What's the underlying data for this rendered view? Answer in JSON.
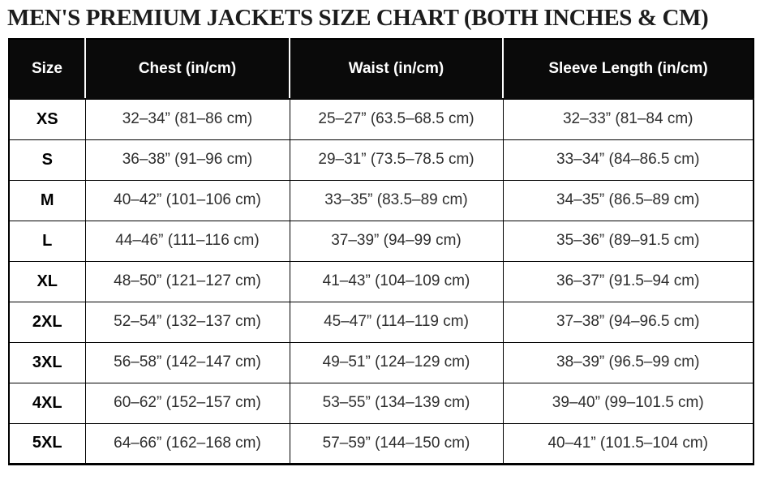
{
  "page": {
    "title": "MEN'S PREMIUM JACKETS SIZE CHART (BOTH INCHES & CM)"
  },
  "colors": {
    "header_bg": "#0a0a0a",
    "header_text": "#ffffff",
    "body_text": "#2e2e2e",
    "border": "#000000",
    "background": "#ffffff"
  },
  "table": {
    "columns": [
      "Size",
      "Chest (in/cm)",
      "Waist (in/cm)",
      "Sleeve Length (in/cm)"
    ],
    "rows": [
      {
        "size": "XS",
        "chest": "32–34” (81–86 cm)",
        "waist": "25–27” (63.5–68.5 cm)",
        "sleeve": "32–33” (81–84 cm)"
      },
      {
        "size": "S",
        "chest": "36–38” (91–96 cm)",
        "waist": "29–31” (73.5–78.5 cm)",
        "sleeve": "33–34” (84–86.5 cm)"
      },
      {
        "size": "M",
        "chest": "40–42” (101–106 cm)",
        "waist": "33–35” (83.5–89 cm)",
        "sleeve": "34–35” (86.5–89 cm)"
      },
      {
        "size": "L",
        "chest": "44–46” (111–116 cm)",
        "waist": "37–39” (94–99 cm)",
        "sleeve": "35–36” (89–91.5 cm)"
      },
      {
        "size": "XL",
        "chest": "48–50” (121–127 cm)",
        "waist": "41–43” (104–109 cm)",
        "sleeve": "36–37” (91.5–94 cm)"
      },
      {
        "size": "2XL",
        "chest": "52–54” (132–137 cm)",
        "waist": "45–47” (114–119 cm)",
        "sleeve": "37–38” (94–96.5 cm)"
      },
      {
        "size": "3XL",
        "chest": "56–58” (142–147 cm)",
        "waist": "49–51” (124–129 cm)",
        "sleeve": "38–39” (96.5–99 cm)"
      },
      {
        "size": "4XL",
        "chest": "60–62” (152–157 cm)",
        "waist": "53–55” (134–139 cm)",
        "sleeve": "39–40” (99–101.5 cm)"
      },
      {
        "size": "5XL",
        "chest": "64–66” (162–168 cm)",
        "waist": "57–59” (144–150 cm)",
        "sleeve": "40–41” (101.5–104 cm)"
      }
    ]
  },
  "chart_data": {
    "type": "table",
    "title": "MEN'S PREMIUM JACKETS SIZE CHART (BOTH INCHES & CM)",
    "columns": [
      "Size",
      "Chest (in/cm)",
      "Waist (in/cm)",
      "Sleeve Length (in/cm)"
    ],
    "rows": [
      [
        "XS",
        "32–34” (81–86 cm)",
        "25–27” (63.5–68.5 cm)",
        "32–33” (81–84 cm)"
      ],
      [
        "S",
        "36–38” (91–96 cm)",
        "29–31” (73.5–78.5 cm)",
        "33–34” (84–86.5 cm)"
      ],
      [
        "M",
        "40–42” (101–106 cm)",
        "33–35” (83.5–89 cm)",
        "34–35” (86.5–89 cm)"
      ],
      [
        "L",
        "44–46” (111–116 cm)",
        "37–39” (94–99 cm)",
        "35–36” (89–91.5 cm)"
      ],
      [
        "XL",
        "48–50” (121–127 cm)",
        "41–43” (104–109 cm)",
        "36–37” (91.5–94 cm)"
      ],
      [
        "2XL",
        "52–54” (132–137 cm)",
        "45–47” (114–119 cm)",
        "37–38” (94–96.5 cm)"
      ],
      [
        "3XL",
        "56–58” (142–147 cm)",
        "49–51” (124–129 cm)",
        "38–39” (96.5–99 cm)"
      ],
      [
        "4XL",
        "60–62” (152–157 cm)",
        "53–55” (134–139 cm)",
        "39–40” (99–101.5 cm)"
      ],
      [
        "5XL",
        "64–66” (162–168 cm)",
        "57–59” (144–150 cm)",
        "40–41” (101.5–104 cm)"
      ]
    ],
    "chest_in_ranges": [
      [
        32,
        34
      ],
      [
        36,
        38
      ],
      [
        40,
        42
      ],
      [
        44,
        46
      ],
      [
        48,
        50
      ],
      [
        52,
        54
      ],
      [
        56,
        58
      ],
      [
        60,
        62
      ],
      [
        64,
        66
      ]
    ],
    "chest_cm_ranges": [
      [
        81,
        86
      ],
      [
        91,
        96
      ],
      [
        101,
        106
      ],
      [
        111,
        116
      ],
      [
        121,
        127
      ],
      [
        132,
        137
      ],
      [
        142,
        147
      ],
      [
        152,
        157
      ],
      [
        162,
        168
      ]
    ],
    "waist_in_ranges": [
      [
        25,
        27
      ],
      [
        29,
        31
      ],
      [
        33,
        35
      ],
      [
        37,
        39
      ],
      [
        41,
        43
      ],
      [
        45,
        47
      ],
      [
        49,
        51
      ],
      [
        53,
        55
      ],
      [
        57,
        59
      ]
    ],
    "waist_cm_ranges": [
      [
        63.5,
        68.5
      ],
      [
        73.5,
        78.5
      ],
      [
        83.5,
        89
      ],
      [
        94,
        99
      ],
      [
        104,
        109
      ],
      [
        114,
        119
      ],
      [
        124,
        129
      ],
      [
        134,
        139
      ],
      [
        144,
        150
      ]
    ],
    "sleeve_in_ranges": [
      [
        32,
        33
      ],
      [
        33,
        34
      ],
      [
        34,
        35
      ],
      [
        35,
        36
      ],
      [
        36,
        37
      ],
      [
        37,
        38
      ],
      [
        38,
        39
      ],
      [
        39,
        40
      ],
      [
        40,
        41
      ]
    ],
    "sleeve_cm_ranges": [
      [
        81,
        84
      ],
      [
        84,
        86.5
      ],
      [
        86.5,
        89
      ],
      [
        89,
        91.5
      ],
      [
        91.5,
        94
      ],
      [
        94,
        96.5
      ],
      [
        96.5,
        99
      ],
      [
        99,
        101.5
      ],
      [
        101.5,
        104
      ]
    ]
  }
}
